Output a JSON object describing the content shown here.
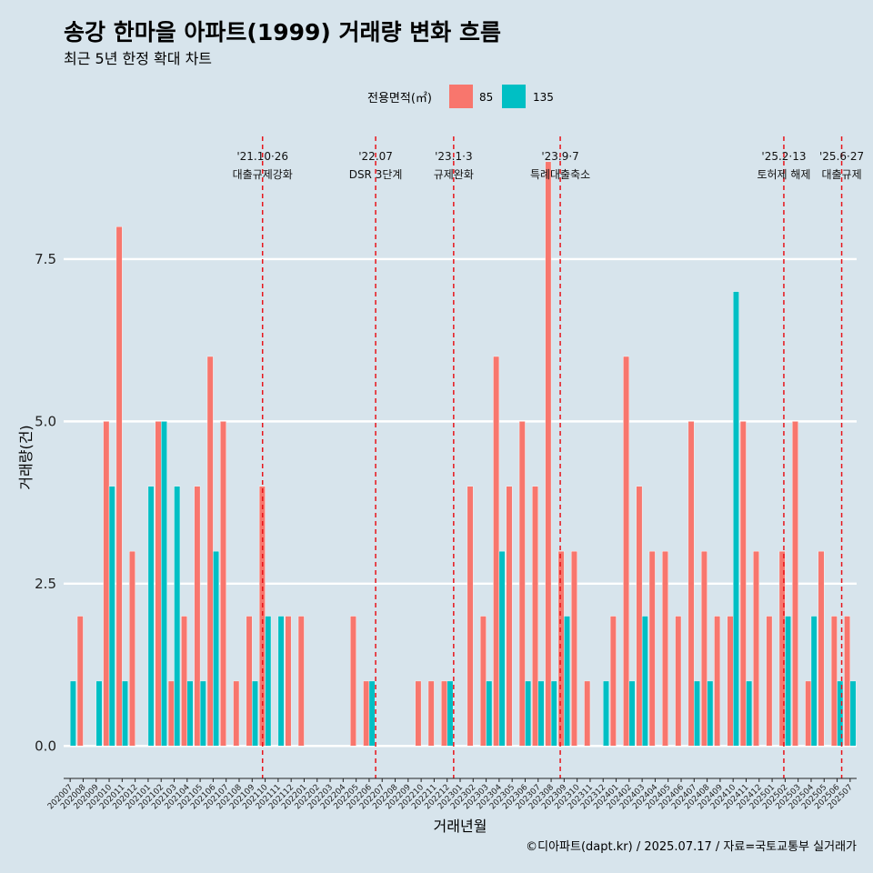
{
  "chart_data": {
    "type": "bar",
    "title": "송강 한마을 아파트(1999) 거래량 변화 흐름",
    "subtitle": "최근 5년 한정 확대 차트",
    "xlabel": "거래년월",
    "ylabel": "거래량(건)",
    "caption": "©디아파트(dapt.kr) / 2025.07.17 / 자료=국토교통부 실거래가",
    "legend": {
      "title": "전용면적(㎡)",
      "position": "top"
    },
    "ylim": [
      -0.5,
      9.6
    ],
    "yticks": [
      0,
      2.5,
      5,
      7.5
    ],
    "ytick_labels": [
      "0.0",
      "2.5",
      "5.0",
      "7.5"
    ],
    "categories": [
      "202007",
      "202008",
      "202009",
      "202010",
      "202011",
      "202012",
      "202101",
      "202102",
      "202103",
      "202104",
      "202105",
      "202106",
      "202107",
      "202108",
      "202109",
      "202110",
      "202111",
      "202112",
      "202201",
      "202202",
      "202203",
      "202204",
      "202205",
      "202206",
      "202207",
      "202208",
      "202209",
      "202210",
      "202211",
      "202212",
      "202301",
      "202302",
      "202303",
      "202304",
      "202305",
      "202306",
      "202307",
      "202308",
      "202309",
      "202310",
      "202311",
      "202312",
      "202401",
      "202402",
      "202403",
      "202404",
      "202405",
      "202406",
      "202407",
      "202408",
      "202409",
      "202410",
      "202411",
      "202412",
      "202501",
      "202502",
      "202503",
      "202504",
      "202505",
      "202506",
      "202507"
    ],
    "series": [
      {
        "name": "85",
        "color": "#f8766d",
        "values": [
          0,
          2,
          0,
          5,
          8,
          3,
          0,
          5,
          1,
          2,
          4,
          6,
          5,
          1,
          2,
          4,
          0,
          2,
          2,
          0,
          0,
          0,
          2,
          1,
          0,
          0,
          0,
          1,
          1,
          1,
          0,
          4,
          2,
          6,
          4,
          5,
          4,
          9,
          3,
          3,
          1,
          0,
          2,
          6,
          4,
          3,
          3,
          2,
          5,
          3,
          2,
          2,
          5,
          3,
          2,
          3,
          5,
          1,
          3,
          2,
          2
        ]
      },
      {
        "name": "135",
        "color": "#00bfc4",
        "values": [
          1,
          0,
          1,
          4,
          1,
          0,
          4,
          5,
          4,
          1,
          1,
          3,
          0,
          0,
          1,
          2,
          2,
          0,
          0,
          0,
          0,
          0,
          0,
          1,
          0,
          0,
          0,
          0,
          0,
          1,
          0,
          0,
          1,
          3,
          0,
          1,
          1,
          1,
          2,
          0,
          0,
          1,
          0,
          1,
          2,
          0,
          0,
          0,
          1,
          1,
          0,
          7,
          1,
          0,
          0,
          2,
          0,
          2,
          0,
          1,
          1
        ]
      }
    ],
    "events": [
      {
        "label": "'21.10·26",
        "desc": "대출규제강화",
        "at": "202110",
        "frac": 0.3
      },
      {
        "label": "'22.07",
        "desc": "DSR 3단계",
        "at": "202207",
        "frac": 0.0
      },
      {
        "label": "'23.1·3",
        "desc": "규제완화",
        "at": "202301",
        "frac": 0.0
      },
      {
        "label": "'23.9·7",
        "desc": "특례대출축소",
        "at": "202309",
        "frac": 0.2
      },
      {
        "label": "'25.2·13",
        "desc": "토허제 해제",
        "at": "202502",
        "frac": 0.4
      },
      {
        "label": "'25.6·27",
        "desc": "대출규제",
        "at": "202506",
        "frac": 0.85
      }
    ]
  }
}
